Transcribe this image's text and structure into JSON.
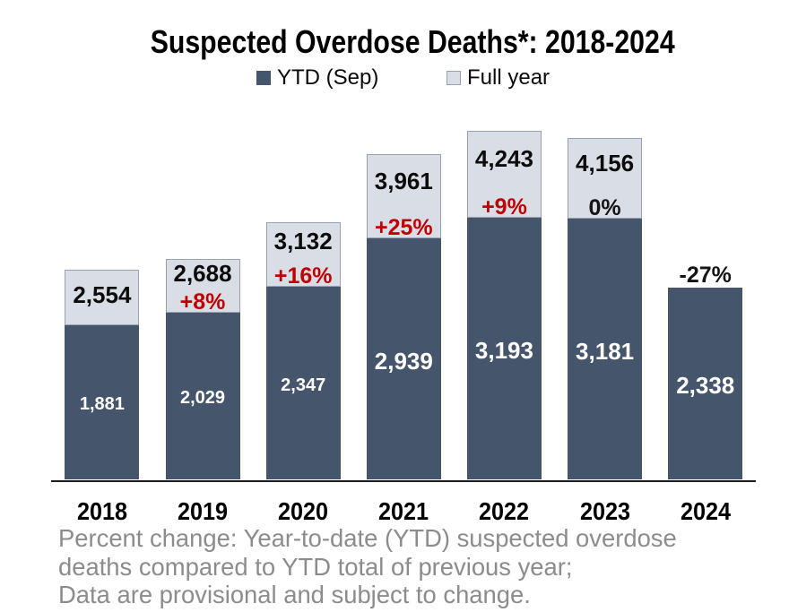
{
  "title": "Suspected Overdose Deaths*: 2018-2024",
  "legend": {
    "position": "top",
    "items": [
      {
        "label": "YTD (Sep)",
        "swatch": "dark-navy-square"
      },
      {
        "label": "Full year",
        "swatch": "light-gray-square"
      }
    ]
  },
  "chart_data": {
    "type": "bar",
    "stacked": true,
    "title": "Suspected Overdose Deaths*: 2018-2024",
    "categories": [
      "2018",
      "2019",
      "2020",
      "2021",
      "2022",
      "2023",
      "2024"
    ],
    "series": [
      {
        "name": "YTD (Sep)",
        "values": [
          1881,
          2029,
          2347,
          2939,
          3193,
          3181,
          2338
        ],
        "labels": [
          "1,881",
          "2,029",
          "2,347",
          "2,939",
          "3,193",
          "3,181",
          "2,338"
        ],
        "label_style": [
          "sm",
          "sm",
          "sm",
          "lg",
          "lg",
          "lg",
          "lg"
        ]
      },
      {
        "name": "Full year",
        "values": [
          2554,
          2688,
          3132,
          3961,
          4243,
          4156,
          null
        ],
        "labels": [
          "2,554",
          "2,688",
          "3,132",
          "3,961",
          "4,243",
          "4,156",
          null
        ]
      }
    ],
    "pct_change": {
      "labels": [
        null,
        "+8%",
        "+16%",
        "+25%",
        "+9%",
        "0%",
        "-27%"
      ],
      "color_style": [
        null,
        "red",
        "red",
        "red",
        "red",
        "black",
        "black"
      ]
    },
    "xlabel": "",
    "ylabel": "",
    "ylim": [
      0,
      4580
    ],
    "grid": false,
    "legend_position": "top"
  },
  "footnote": {
    "lines": [
      "Percent change: Year-to-date (YTD) suspected overdose",
      "deaths compared to YTD total of previous year;",
      "Data are provisional and subject to change."
    ]
  },
  "colors": {
    "ytd_fill": "#45556C",
    "full_fill": "#D9DDE6",
    "full_border": "#98A2B5",
    "pct_red": "#C00000",
    "pct_black": "#141414",
    "label_white": "#FFFFFF",
    "label_black": "#0C0C0C",
    "axis_line": "#1A1A1A",
    "footnote_gray": "#8C8C8C",
    "title_black": "#000000",
    "background": "#FFFFFF"
  }
}
